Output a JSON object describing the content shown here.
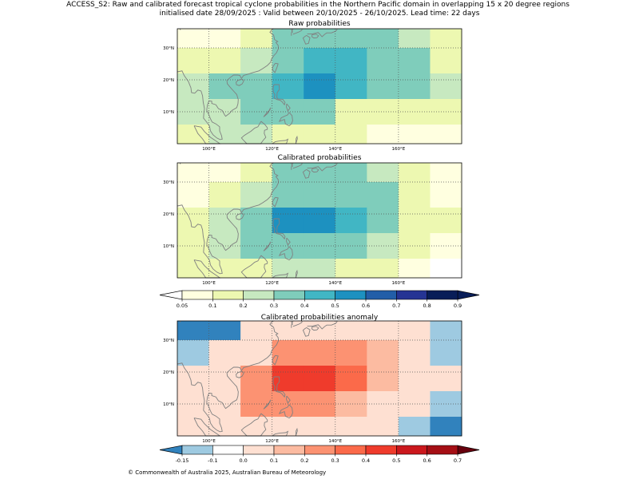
{
  "figure": {
    "title_line1": "ACCESS_S2: Raw and calibrated forecast tropical cyclone probabilities in the Northern Pacific domain in overlapping 15 x 20 degree regions",
    "title_line2": "initialised date 28/09/2025 :  Valid between 20/10/2025 - 26/10/2025. Lead time: 22 days",
    "copyright": "© Commonwealth of Australia 2025, Australian Bureau of Meteorology"
  },
  "colors": {
    "prob_colors": [
      "#ffffe0",
      "#edf8b1",
      "#c7e9c0",
      "#7fcdbb",
      "#41b6c4",
      "#1d91c0",
      "#225ea8",
      "#253494",
      "#081d58"
    ],
    "prob_under": "#ffffff",
    "prob_over": "#081d58",
    "anom_colors": [
      "#9ecae1",
      "#ffffff",
      "#fee0d2",
      "#fcbba1",
      "#fc9272",
      "#fb6a4a",
      "#ef3b2c",
      "#cb181d",
      "#a50f15"
    ],
    "anom_under": "#3182bd",
    "anom_over": "#67000d",
    "coastline": "#808080"
  },
  "chart_data": [
    {
      "type": "heatmap",
      "title": "Raw probabilities",
      "x_ticks": [
        "100°E",
        "120°E",
        "140°E",
        "160°E"
      ],
      "y_ticks": [
        "10°N",
        "20°N",
        "30°N"
      ],
      "x_tick_values": [
        100,
        120,
        140,
        160
      ],
      "y_tick_values": [
        10,
        20,
        30
      ],
      "xlim": [
        90,
        180
      ],
      "ylim": [
        0,
        36
      ],
      "lon_edges": [
        90,
        100,
        110,
        120,
        130,
        140,
        150,
        160,
        170,
        180
      ],
      "lat_edges": [
        36,
        30,
        22,
        14,
        6,
        0
      ],
      "scale": "prob",
      "values": [
        [
          0.05,
          0.05,
          0.15,
          0.35,
          0.35,
          0.35,
          0.3,
          0.25,
          0.15
        ],
        [
          0.1,
          0.15,
          0.25,
          0.35,
          0.45,
          0.45,
          0.35,
          0.3,
          0.15
        ],
        [
          0.25,
          0.3,
          0.35,
          0.45,
          0.55,
          0.45,
          0.35,
          0.3,
          0.2
        ],
        [
          0.2,
          0.2,
          0.3,
          0.35,
          0.3,
          0.15,
          0.15,
          0.15,
          0.15
        ],
        [
          0.15,
          0.2,
          0.2,
          0.15,
          0.15,
          0.15,
          0.05,
          0.05,
          0.05
        ]
      ]
    },
    {
      "type": "heatmap",
      "title": "Calibrated probabilities",
      "x_ticks": [
        "100°E",
        "120°E",
        "140°E",
        "160°E"
      ],
      "y_ticks": [
        "10°N",
        "20°N",
        "30°N"
      ],
      "x_tick_values": [
        100,
        120,
        140,
        160
      ],
      "y_tick_values": [
        10,
        20,
        30
      ],
      "xlim": [
        90,
        180
      ],
      "ylim": [
        0,
        36
      ],
      "lon_edges": [
        90,
        100,
        110,
        120,
        130,
        140,
        150,
        160,
        170,
        180
      ],
      "lat_edges": [
        36,
        30,
        22,
        14,
        6,
        0
      ],
      "scale": "prob",
      "values": [
        [
          0.05,
          0.05,
          0.15,
          0.35,
          0.35,
          0.3,
          0.25,
          0.15,
          0.05
        ],
        [
          0.05,
          0.1,
          0.25,
          0.35,
          0.35,
          0.35,
          0.3,
          0.15,
          0.05
        ],
        [
          0.15,
          0.25,
          0.35,
          0.55,
          0.55,
          0.45,
          0.3,
          0.15,
          0.15
        ],
        [
          0.15,
          0.2,
          0.35,
          0.35,
          0.35,
          0.3,
          0.25,
          0.15,
          0.05
        ],
        [
          0.15,
          0.15,
          0.15,
          0.2,
          0.2,
          0.15,
          0.15,
          0.05,
          0.0
        ]
      ]
    },
    {
      "type": "heatmap",
      "title": "Calibrated probabilities anomaly",
      "x_ticks": [
        "100°E",
        "120°E",
        "140°E",
        "160°E"
      ],
      "y_ticks": [
        "10°N",
        "20°N",
        "30°N"
      ],
      "x_tick_values": [
        100,
        120,
        140,
        160
      ],
      "y_tick_values": [
        10,
        20,
        30
      ],
      "xlim": [
        90,
        180
      ],
      "ylim": [
        0,
        36
      ],
      "lon_edges": [
        90,
        100,
        110,
        120,
        130,
        140,
        150,
        160,
        170,
        180
      ],
      "lat_edges": [
        36,
        30,
        22,
        14,
        6,
        0
      ],
      "scale": "anom",
      "values": [
        [
          -0.2,
          -0.2,
          0.0,
          0.05,
          0.05,
          0.05,
          0.05,
          0.0,
          -0.12
        ],
        [
          -0.12,
          0.0,
          0.05,
          0.25,
          0.25,
          0.25,
          0.15,
          0.0,
          -0.12
        ],
        [
          0.0,
          0.05,
          0.25,
          0.45,
          0.45,
          0.35,
          0.15,
          0.0,
          0.0
        ],
        [
          0.0,
          0.05,
          0.25,
          0.25,
          0.25,
          0.15,
          0.05,
          0.0,
          -0.12
        ],
        [
          0.0,
          0.0,
          0.05,
          0.05,
          0.05,
          0.05,
          0.0,
          -0.12,
          -0.2
        ]
      ]
    }
  ],
  "colorbars": {
    "prob": {
      "ticks": [
        "0.05",
        "0.1",
        "0.2",
        "0.3",
        "0.4",
        "0.5",
        "0.6",
        "0.7",
        "0.8",
        "0.9"
      ],
      "bounds": [
        0.05,
        0.1,
        0.2,
        0.3,
        0.4,
        0.5,
        0.6,
        0.7,
        0.8,
        0.9
      ]
    },
    "anom": {
      "ticks": [
        "-0.15",
        "-0.1",
        "0.0",
        "0.1",
        "0.2",
        "0.3",
        "0.4",
        "0.5",
        "0.6",
        "0.7"
      ],
      "bounds": [
        -0.15,
        -0.1,
        0.0,
        0.1,
        0.2,
        0.3,
        0.4,
        0.5,
        0.6,
        0.7
      ]
    }
  }
}
